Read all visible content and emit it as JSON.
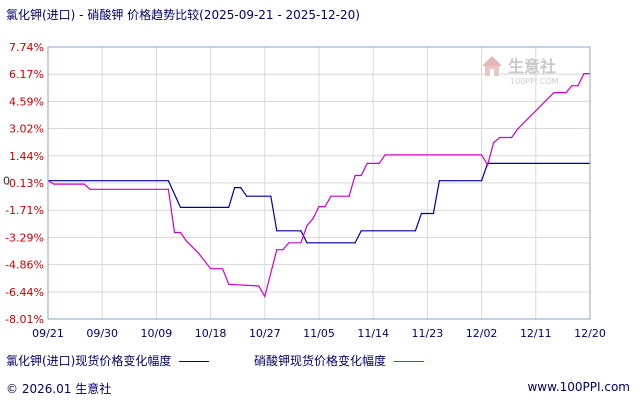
{
  "title": "氯化钾(进口) - 硝酸钾 价格趋势比较(2025-09-21 - 2025-12-20)",
  "watermark": {
    "text": "生意社",
    "url": "100PPI.COM"
  },
  "footer": {
    "copyright": "© 2026.01 生意社",
    "site": "www.100PPI.com"
  },
  "legend": [
    {
      "label": "氯化钾(进口)现货价格变化幅度",
      "color": "#000099"
    },
    {
      "label": "硝酸钾现货价格变化幅度",
      "color": "#cc00cc"
    }
  ],
  "colors": {
    "frame": "#8fa3bf",
    "grid": "#d8d8d8",
    "positive_tick": "#cc0000",
    "negative_tick": "#cc0000",
    "zero_tick": "#333333"
  },
  "chart_data": {
    "type": "line",
    "x_ticks": [
      "09/21",
      "09/30",
      "10/09",
      "10/18",
      "10/27",
      "11/05",
      "11/14",
      "11/23",
      "12/02",
      "12/11",
      "12/20"
    ],
    "y_ticks": [
      "7.74%",
      "6.17%",
      "4.59%",
      "3.02%",
      "1.44%",
      "-0.13%",
      "-1.71%",
      "-3.29%",
      "-4.86%",
      "-6.44%",
      "-8.01%"
    ],
    "y_zero_label": "0",
    "ylim": [
      -8.01,
      7.74
    ],
    "xlim": [
      "09/21",
      "12/20"
    ],
    "series": [
      {
        "name": "氯化钾(进口)现货价格变化幅度",
        "points": [
          [
            "09/21",
            0.0
          ],
          [
            "10/11",
            0.0
          ],
          [
            "10/13",
            -1.55
          ],
          [
            "10/21",
            -1.55
          ],
          [
            "10/22",
            -0.4
          ],
          [
            "10/23",
            -0.4
          ],
          [
            "10/24",
            -0.9
          ],
          [
            "10/28",
            -0.9
          ],
          [
            "10/29",
            -2.9
          ],
          [
            "11/02",
            -2.9
          ],
          [
            "11/03",
            -3.6
          ],
          [
            "11/11",
            -3.6
          ],
          [
            "11/12",
            -2.9
          ],
          [
            "11/21",
            -2.9
          ],
          [
            "11/22",
            -1.9
          ],
          [
            "11/24",
            -1.9
          ],
          [
            "11/25",
            0.0
          ],
          [
            "12/02",
            0.0
          ],
          [
            "12/03",
            1.0
          ],
          [
            "12/20",
            1.0
          ]
        ]
      },
      {
        "name": "硝酸钾现货价格变化幅度",
        "points": [
          [
            "09/21",
            0.0
          ],
          [
            "09/22",
            -0.2
          ],
          [
            "09/27",
            -0.2
          ],
          [
            "09/28",
            -0.5
          ],
          [
            "10/11",
            -0.5
          ],
          [
            "10/12",
            -3.0
          ],
          [
            "10/13",
            -3.0
          ],
          [
            "10/14",
            -3.5
          ],
          [
            "10/16",
            -4.2
          ],
          [
            "10/18",
            -5.1
          ],
          [
            "10/20",
            -5.1
          ],
          [
            "10/21",
            -6.0
          ],
          [
            "10/26",
            -6.1
          ],
          [
            "10/27",
            -6.7
          ],
          [
            "10/29",
            -4.0
          ],
          [
            "10/30",
            -4.0
          ],
          [
            "10/31",
            -3.6
          ],
          [
            "11/02",
            -3.6
          ],
          [
            "11/03",
            -2.6
          ],
          [
            "11/04",
            -2.2
          ],
          [
            "11/05",
            -1.5
          ],
          [
            "11/06",
            -1.5
          ],
          [
            "11/07",
            -0.9
          ],
          [
            "11/10",
            -0.9
          ],
          [
            "11/11",
            0.3
          ],
          [
            "11/12",
            0.3
          ],
          [
            "11/13",
            1.0
          ],
          [
            "11/15",
            1.0
          ],
          [
            "11/16",
            1.5
          ],
          [
            "12/02",
            1.5
          ],
          [
            "12/03",
            0.9
          ],
          [
            "12/04",
            2.2
          ],
          [
            "12/05",
            2.5
          ],
          [
            "12/07",
            2.5
          ],
          [
            "12/08",
            3.0
          ],
          [
            "12/14",
            5.1
          ],
          [
            "12/16",
            5.1
          ],
          [
            "12/17",
            5.5
          ],
          [
            "12/18",
            5.5
          ],
          [
            "12/19",
            6.2
          ],
          [
            "12/20",
            6.2
          ]
        ]
      }
    ],
    "grid": true,
    "legend_position": "bottom"
  }
}
